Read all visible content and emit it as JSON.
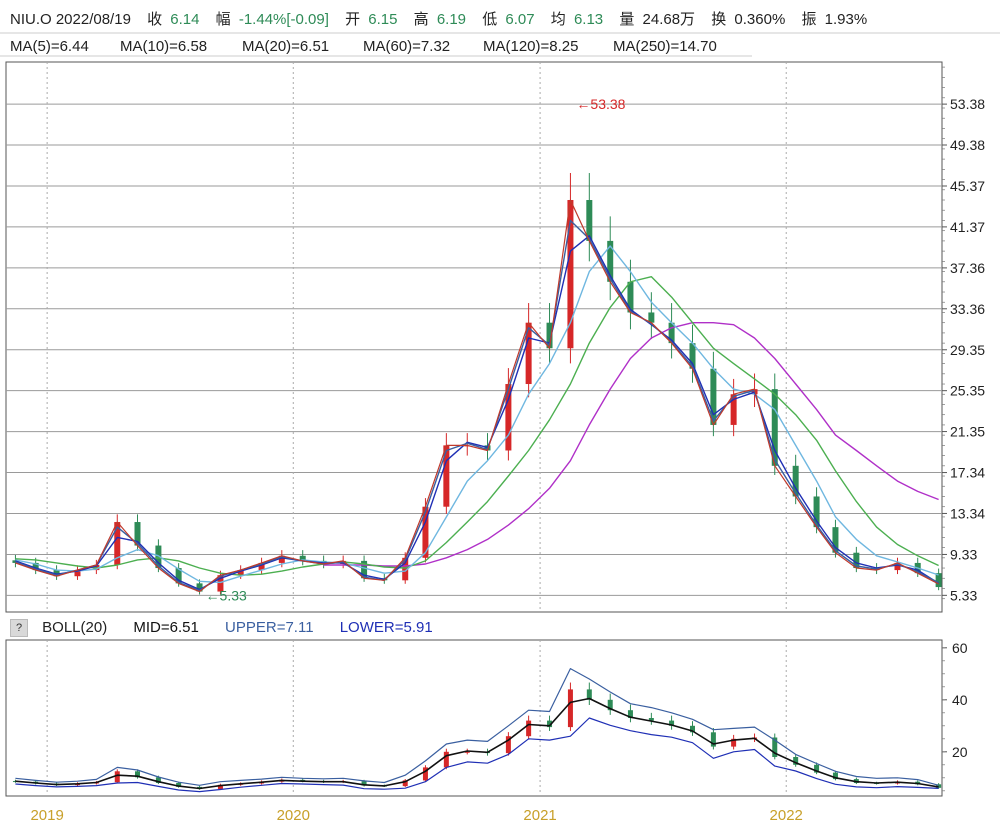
{
  "quote": {
    "symbol_date": "NIU.O 2022/08/19",
    "close_label": "收",
    "close_value": "6.14",
    "change_label": "幅",
    "change_value": "-1.44%[-0.09]",
    "open_label": "开",
    "open_value": "6.15",
    "high_label": "高",
    "high_value": "6.19",
    "low_label": "低",
    "low_value": "6.07",
    "avg_label": "均",
    "avg_value": "6.13",
    "volume_label": "量",
    "volume_value": "24.68万",
    "turnover_label": "换",
    "turnover_value": "0.360%",
    "amplitude_label": "振",
    "amplitude_value": "1.93%",
    "up_color": "#d62728",
    "down_color": "#2e8b57"
  },
  "ma_legend": [
    {
      "text": "MA(5)=6.44",
      "color": "#c0392b"
    },
    {
      "text": "MA(10)=6.58",
      "color": "#3a5fa0"
    },
    {
      "text": "MA(20)=6.51",
      "color": "#1f2fb5"
    },
    {
      "text": "MA(60)=7.32",
      "color": "#6fb7e0"
    },
    {
      "text": "MA(120)=8.25",
      "color": "#4caf50"
    },
    {
      "text": "MA(250)=14.70",
      "color": "#b030c8"
    }
  ],
  "boll_legend": {
    "help": "?",
    "label": "BOLL(20)",
    "mid": "MID=6.51",
    "upper": "UPPER=7.11",
    "lower": "LOWER=5.91",
    "mid_color": "#111111",
    "upper_color": "#3a5fa0",
    "lower_color": "#1f2fb5"
  },
  "chart_data": [
    {
      "type": "candlestick",
      "title": "NIU.O",
      "y_ticks": [
        5.33,
        9.33,
        13.34,
        17.34,
        21.35,
        25.35,
        29.35,
        33.36,
        37.36,
        41.37,
        45.37,
        49.38,
        53.38
      ],
      "ylim": [
        3.7,
        57.5
      ],
      "x_ticks": [
        "2019",
        "2020",
        "2021",
        "2022"
      ],
      "x_range": [
        "2018-11",
        "2022-08"
      ],
      "grid": true,
      "annotations": [
        {
          "text": "←53.38",
          "x": "2021-02",
          "y": 53.38,
          "color": "#d62728"
        },
        {
          "text": "←5.33",
          "x": "2019-08",
          "y": 5.33,
          "color": "#2e8b57"
        }
      ],
      "dates": [
        "2018-11",
        "2018-12",
        "2019-01",
        "2019-02",
        "2019-03",
        "2019-04",
        "2019-05",
        "2019-06",
        "2019-07",
        "2019-08",
        "2019-09",
        "2019-10",
        "2019-11",
        "2019-12",
        "2020-01",
        "2020-02",
        "2020-03",
        "2020-04",
        "2020-05",
        "2020-06",
        "2020-07",
        "2020-08",
        "2020-09",
        "2020-10",
        "2020-11",
        "2020-12",
        "2021-01",
        "2021-02",
        "2021-03",
        "2021-04",
        "2021-05",
        "2021-06",
        "2021-07",
        "2021-08",
        "2021-09",
        "2021-10",
        "2021-11",
        "2021-12",
        "2022-01",
        "2022-02",
        "2022-03",
        "2022-04",
        "2022-05",
        "2022-06",
        "2022-07",
        "2022-08"
      ],
      "series": [
        {
          "name": "close",
          "values": [
            8.5,
            7.8,
            7.2,
            7.8,
            8.3,
            12.5,
            10.2,
            8.0,
            6.5,
            5.7,
            7.3,
            7.8,
            8.5,
            9.2,
            8.7,
            8.4,
            8.7,
            7.0,
            6.8,
            9.0,
            14.0,
            20.0,
            20.0,
            19.5,
            26.0,
            32.0,
            29.5,
            44.0,
            40.0,
            36.0,
            33.0,
            32.0,
            30.0,
            27.5,
            22.0,
            25.0,
            25.5,
            18.0,
            15.0,
            12.0,
            9.5,
            8.0,
            7.8,
            8.5,
            7.5,
            6.14
          ]
        },
        {
          "name": "MA(5)",
          "values": [
            8.5,
            7.8,
            7.2,
            7.8,
            8.3,
            12.5,
            10.2,
            8.0,
            6.5,
            5.7,
            7.3,
            7.8,
            8.5,
            9.2,
            8.7,
            8.4,
            8.7,
            7.0,
            6.8,
            9.0,
            14.0,
            20.0,
            20.0,
            19.5,
            26.0,
            32.0,
            29.5,
            44.0,
            40.0,
            36.0,
            33.0,
            32.0,
            30.0,
            27.5,
            22.0,
            25.0,
            25.5,
            18.0,
            15.0,
            12.0,
            9.5,
            8.0,
            7.8,
            8.5,
            7.5,
            6.44
          ]
        },
        {
          "name": "MA(10)",
          "values": [
            8.6,
            7.9,
            7.3,
            7.8,
            8.3,
            12.0,
            10.4,
            8.2,
            6.6,
            5.8,
            7.2,
            7.8,
            8.4,
            9.1,
            8.7,
            8.4,
            8.6,
            7.1,
            6.8,
            8.8,
            13.5,
            19.5,
            20.2,
            19.6,
            25.5,
            31.5,
            29.8,
            42.0,
            40.2,
            36.3,
            33.1,
            31.9,
            30.1,
            27.7,
            22.4,
            24.8,
            25.4,
            18.6,
            15.3,
            12.2,
            9.7,
            8.2,
            7.9,
            8.4,
            7.6,
            6.58
          ]
        },
        {
          "name": "MA(20)",
          "values": [
            8.7,
            8.0,
            7.4,
            7.7,
            8.2,
            11.0,
            10.6,
            8.5,
            6.8,
            5.9,
            7.0,
            7.7,
            8.3,
            9.0,
            8.7,
            8.5,
            8.5,
            7.3,
            6.9,
            8.5,
            12.5,
            18.5,
            20.3,
            19.8,
            24.5,
            30.5,
            30.0,
            39.0,
            40.5,
            36.6,
            33.3,
            31.8,
            30.3,
            28.0,
            23.0,
            24.5,
            25.2,
            19.5,
            15.8,
            12.6,
            10.0,
            8.5,
            8.0,
            8.3,
            7.8,
            6.51
          ]
        },
        {
          "name": "MA(60)",
          "values": [
            8.8,
            8.4,
            7.8,
            7.7,
            7.9,
            9.0,
            9.8,
            9.2,
            7.9,
            6.7,
            6.6,
            7.2,
            7.8,
            8.4,
            8.8,
            8.6,
            8.5,
            8.0,
            7.5,
            7.7,
            9.5,
            13.0,
            16.5,
            18.5,
            21.0,
            25.0,
            28.0,
            32.0,
            37.0,
            39.5,
            37.0,
            34.0,
            32.0,
            30.0,
            27.5,
            25.5,
            25.0,
            23.5,
            20.0,
            16.5,
            13.0,
            10.8,
            9.2,
            8.6,
            8.0,
            7.32
          ]
        },
        {
          "name": "MA(120)",
          "values": [
            8.9,
            8.8,
            8.5,
            8.2,
            8.0,
            8.3,
            8.8,
            9.0,
            8.7,
            8.0,
            7.5,
            7.3,
            7.4,
            7.7,
            8.1,
            8.4,
            8.6,
            8.4,
            8.1,
            8.0,
            8.7,
            10.5,
            12.5,
            14.5,
            17.0,
            19.5,
            22.5,
            26.0,
            30.0,
            33.5,
            36.0,
            36.5,
            34.5,
            32.0,
            29.5,
            28.0,
            26.5,
            25.0,
            23.0,
            20.5,
            17.5,
            14.5,
            12.0,
            10.3,
            9.2,
            8.25
          ]
        },
        {
          "name": "MA(250)",
          "values": [
            null,
            null,
            null,
            null,
            null,
            null,
            null,
            null,
            null,
            null,
            null,
            null,
            null,
            null,
            null,
            8.3,
            8.3,
            8.3,
            8.2,
            8.2,
            8.4,
            9.0,
            9.8,
            10.8,
            12.2,
            13.8,
            15.8,
            18.5,
            22.0,
            25.5,
            28.5,
            30.5,
            31.5,
            32.0,
            32.0,
            31.8,
            30.5,
            28.5,
            26.0,
            23.5,
            21.0,
            19.5,
            18.0,
            16.5,
            15.5,
            14.7
          ]
        }
      ]
    },
    {
      "type": "line",
      "title": "BOLL(20)",
      "y_ticks": [
        20,
        40,
        60
      ],
      "ylim": [
        3,
        63
      ],
      "x_ticks": [
        "2019",
        "2020",
        "2021",
        "2022"
      ],
      "series": [
        {
          "name": "MID",
          "values": [
            8.7,
            8.0,
            7.4,
            7.7,
            8.2,
            11.0,
            10.6,
            8.5,
            6.8,
            5.9,
            7.0,
            7.7,
            8.3,
            9.0,
            8.7,
            8.5,
            8.5,
            7.3,
            6.9,
            8.5,
            12.5,
            18.5,
            20.3,
            19.8,
            24.5,
            30.5,
            30.0,
            39.0,
            40.5,
            36.6,
            33.3,
            31.8,
            30.3,
            28.0,
            23.0,
            24.5,
            25.2,
            19.5,
            15.8,
            12.6,
            10.0,
            8.5,
            8.0,
            8.3,
            7.8,
            6.51
          ]
        },
        {
          "name": "UPPER",
          "values": [
            9.8,
            9.0,
            8.3,
            8.7,
            9.4,
            14.0,
            13.0,
            10.3,
            8.3,
            7.1,
            8.5,
            9.0,
            9.5,
            10.2,
            9.8,
            9.6,
            9.8,
            8.8,
            8.2,
            11.0,
            16.5,
            23.0,
            24.5,
            24.0,
            30.0,
            36.0,
            35.5,
            52.0,
            48.0,
            43.0,
            38.5,
            37.0,
            35.0,
            32.5,
            28.5,
            29.0,
            29.5,
            24.5,
            19.0,
            15.5,
            12.5,
            10.5,
            9.8,
            10.0,
            9.3,
            7.11
          ]
        },
        {
          "name": "LOWER",
          "values": [
            7.6,
            7.0,
            6.5,
            6.7,
            7.0,
            8.0,
            8.2,
            6.7,
            5.3,
            4.7,
            5.5,
            6.4,
            7.1,
            7.8,
            7.6,
            7.4,
            7.2,
            5.8,
            5.6,
            6.0,
            8.5,
            14.0,
            16.1,
            15.6,
            19.0,
            25.0,
            24.5,
            26.0,
            33.0,
            30.2,
            28.1,
            26.6,
            25.6,
            23.5,
            17.5,
            20.0,
            20.9,
            14.5,
            12.6,
            9.7,
            7.5,
            6.5,
            6.2,
            6.6,
            6.3,
            5.91
          ]
        }
      ]
    }
  ]
}
